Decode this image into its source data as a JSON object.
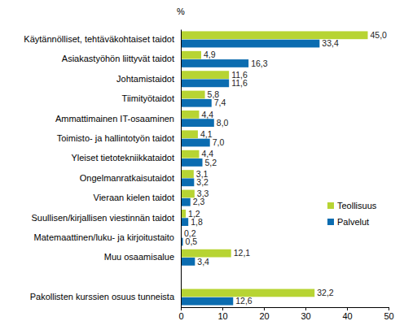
{
  "chart_data": {
    "type": "bar",
    "orientation": "horizontal",
    "xlabel": "%",
    "categories": [
      "Käytännölliset, tehtäväkohtaiset taidot",
      "Asiakastyöhön liittyvät taidot",
      "Johtamistaidot",
      "Tiimityötaidot",
      "Ammattimainen IT-osaaminen",
      "Toimisto- ja hallintotyön taidot",
      "Yleiset tietotekniikkataidot",
      "Ongelmanratkaisutaidot",
      "Vieraan kielen taidot",
      "Suullisen/kirjallisen viestinnän taidot",
      "Matemaattinen/luku- ja kirjoitustaito",
      "Muu osaamisalue",
      null,
      "Pakollisten kurssien osuus tunneista"
    ],
    "series": [
      {
        "name": "Teollisuus",
        "color": "#b7d433",
        "values": [
          45.0,
          4.9,
          11.6,
          5.8,
          4.4,
          4.1,
          4.4,
          3.1,
          3.3,
          1.2,
          0.2,
          12.1,
          null,
          32.2
        ],
        "value_labels": [
          "45,0",
          "4,9",
          "11,6",
          "5,8",
          "4,4",
          "4,1",
          "4,4",
          "3,1",
          "3,3",
          "1,2",
          "0,2",
          "12,1",
          null,
          "32,2"
        ]
      },
      {
        "name": "Palvelut",
        "color": "#0b6cb0",
        "values": [
          33.4,
          16.3,
          11.6,
          7.4,
          8.0,
          7.0,
          5.2,
          3.2,
          2.3,
          1.8,
          0.5,
          3.4,
          null,
          12.6
        ],
        "value_labels": [
          "33,4",
          "16,3",
          "11,6",
          "7,4",
          "8,0",
          "7,0",
          "5,2",
          "3,2",
          "2,3",
          "1,8",
          "0,5",
          "3,4",
          null,
          "12,6"
        ]
      }
    ],
    "xlim": [
      0,
      50
    ],
    "xticks": [
      0,
      10,
      20,
      30,
      40,
      50
    ],
    "grid": false,
    "legend": "right",
    "data_labels": true
  }
}
